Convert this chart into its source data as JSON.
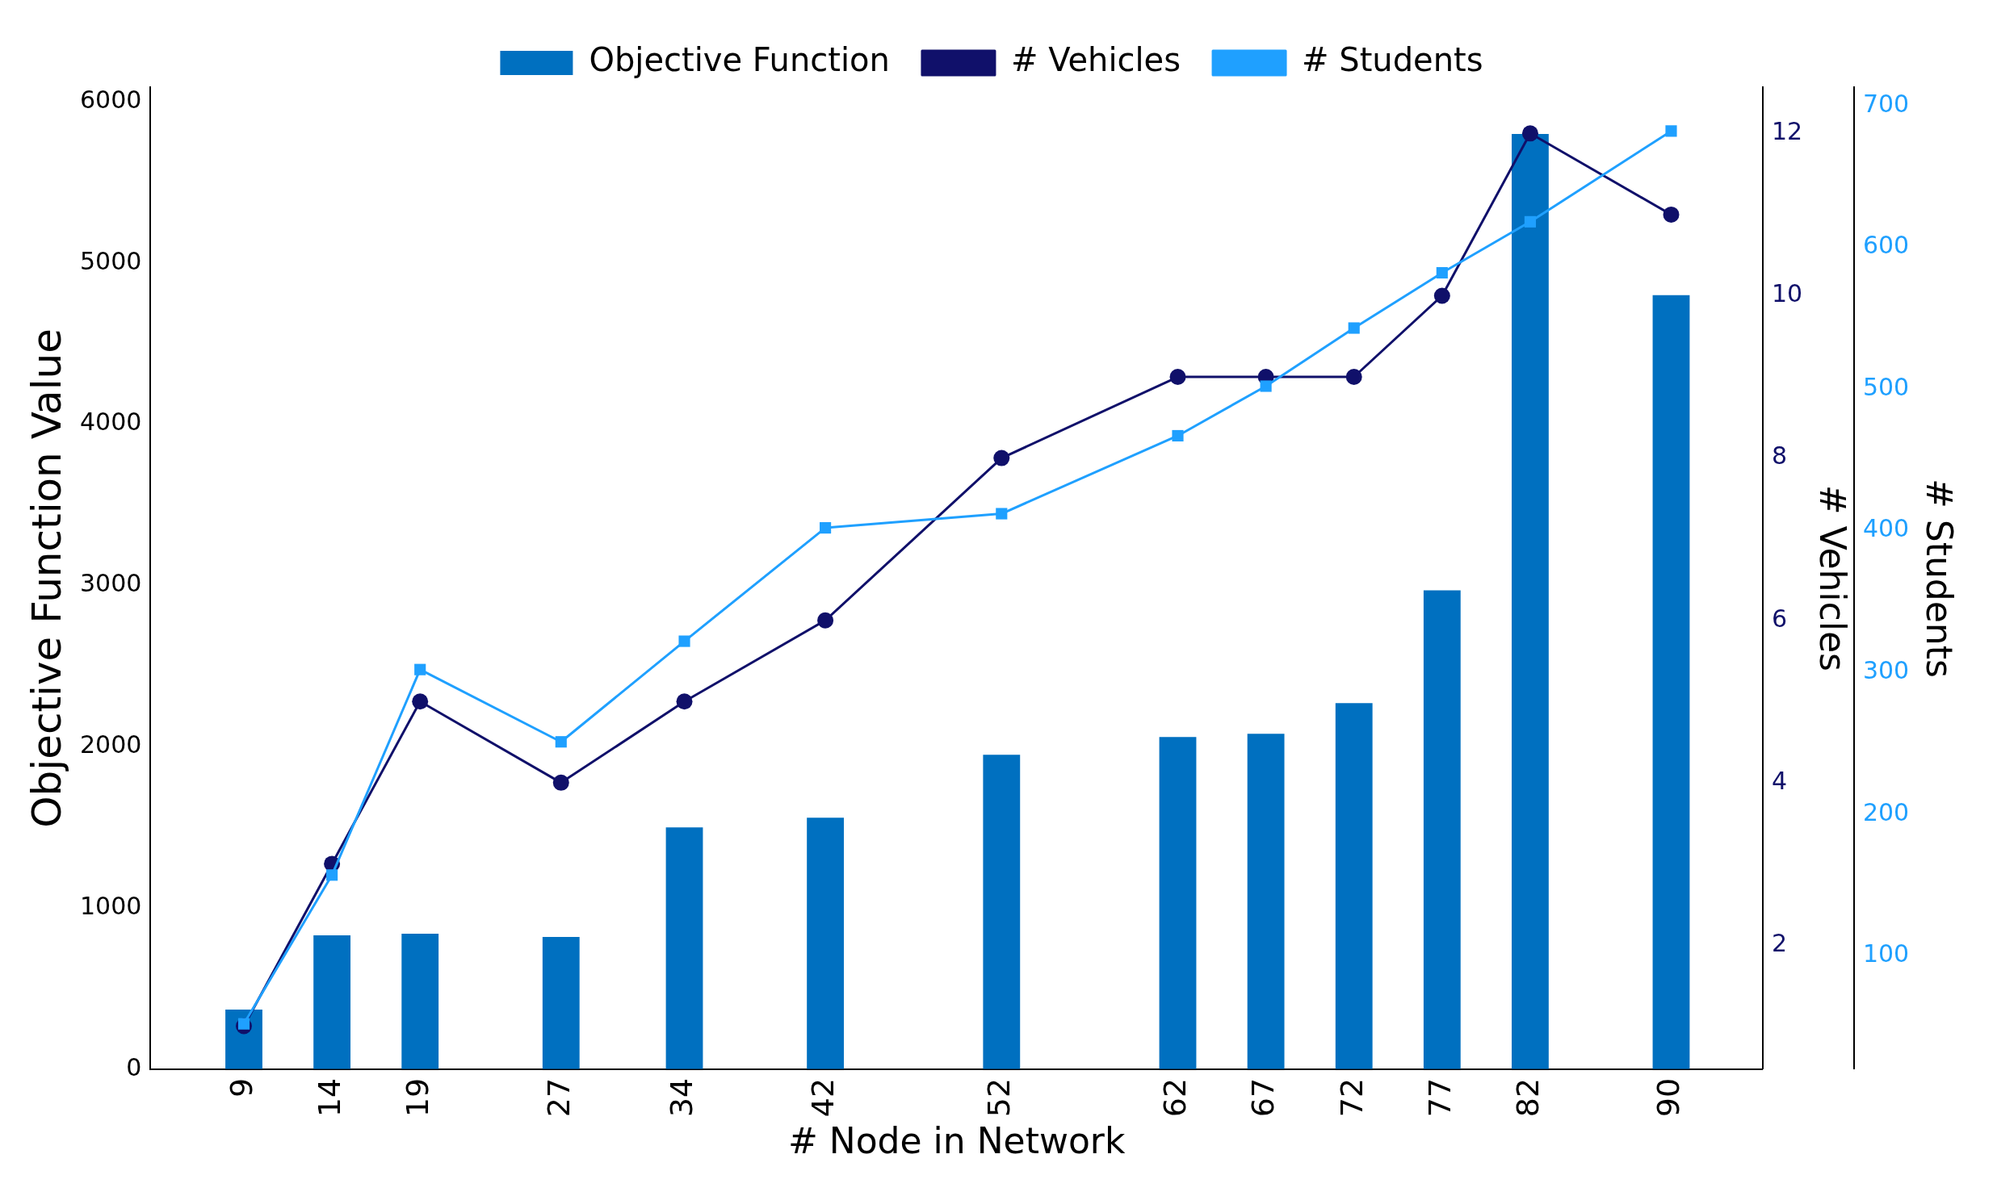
{
  "chart_data": {
    "type": "bar",
    "xlabel": "# Node in Network",
    "ylabel": "Objective Function Value",
    "y2label": "# Vehicles",
    "y3label": "# Students",
    "x": [
      9,
      14,
      19,
      27,
      34,
      42,
      52,
      62,
      67,
      72,
      77,
      82,
      90
    ],
    "series": [
      {
        "name": "Objective Function",
        "color": "#0070c0",
        "values": [
          370,
          830,
          840,
          820,
          1500,
          1560,
          1950,
          2060,
          2080,
          2270,
          2970,
          5800,
          4800
        ]
      },
      {
        "name": "# Vehicles",
        "type": "line",
        "axis": "y2",
        "color": "#10106a",
        "marker": "circle",
        "values": [
          1,
          3,
          5,
          4,
          5,
          6,
          8,
          9,
          9,
          9,
          10,
          12,
          11
        ]
      },
      {
        "name": "# Students",
        "type": "line",
        "axis": "y3",
        "color": "#1fa0ff",
        "marker": "square",
        "values": [
          52,
          157,
          302,
          251,
          322,
          402,
          412,
          467,
          502,
          543,
          582,
          618,
          682
        ]
      }
    ],
    "xlim": [
      3.7,
      95.2
    ],
    "xticks": [
      9,
      14,
      19,
      27,
      34,
      42,
      52,
      62,
      67,
      72,
      77,
      82,
      90
    ],
    "ylim": [
      0,
      6090
    ],
    "yticks": [
      0,
      1000,
      2000,
      3000,
      4000,
      5000,
      6000
    ],
    "y2lim": [
      0.47,
      12.57
    ],
    "y2ticks": [
      2,
      4,
      6,
      8,
      10,
      12
    ],
    "y3lim": [
      20,
      713
    ],
    "y3ticks": [
      100,
      200,
      300,
      400,
      500,
      600,
      700
    ],
    "grid": false,
    "legend": "top",
    "line_style": "solid"
  }
}
